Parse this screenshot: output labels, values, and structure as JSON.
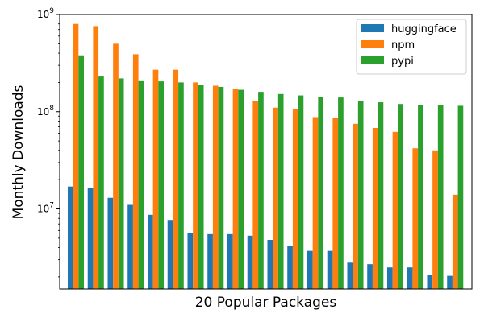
{
  "chart_data": {
    "type": "bar",
    "title": "",
    "xlabel": "20 Popular Packages",
    "ylabel": "Monthly Downloads",
    "yscale": "log",
    "ylim": [
      1500000,
      1000000000
    ],
    "yticks": [
      {
        "value": 10000000,
        "base": "10",
        "exp": "7"
      },
      {
        "value": 100000000,
        "base": "10",
        "exp": "8"
      },
      {
        "value": 1000000000,
        "base": "10",
        "exp": "9"
      }
    ],
    "grid": false,
    "legend_position": "top-right",
    "series": [
      {
        "name": "huggingface",
        "color": "#1f77b4",
        "values": [
          17000000,
          16500000,
          13000000,
          11000000,
          8700000,
          7700000,
          5600000,
          5500000,
          5500000,
          5300000,
          4800000,
          4200000,
          3700000,
          3700000,
          2800000,
          2700000,
          2500000,
          2500000,
          2100000,
          2050000
        ]
      },
      {
        "name": "npm",
        "color": "#ff7f0e",
        "values": [
          800000000,
          760000000,
          500000000,
          390000000,
          270000000,
          270000000,
          200000000,
          185000000,
          170000000,
          130000000,
          110000000,
          107000000,
          88000000,
          87000000,
          75000000,
          68000000,
          62000000,
          42000000,
          40000000,
          14000000
        ]
      },
      {
        "name": "pypi",
        "color": "#2ca02c",
        "values": [
          380000000,
          230000000,
          220000000,
          210000000,
          205000000,
          200000000,
          190000000,
          180000000,
          168000000,
          160000000,
          152000000,
          147000000,
          143000000,
          140000000,
          130000000,
          125000000,
          120000000,
          118000000,
          117000000,
          115000000
        ]
      }
    ]
  }
}
